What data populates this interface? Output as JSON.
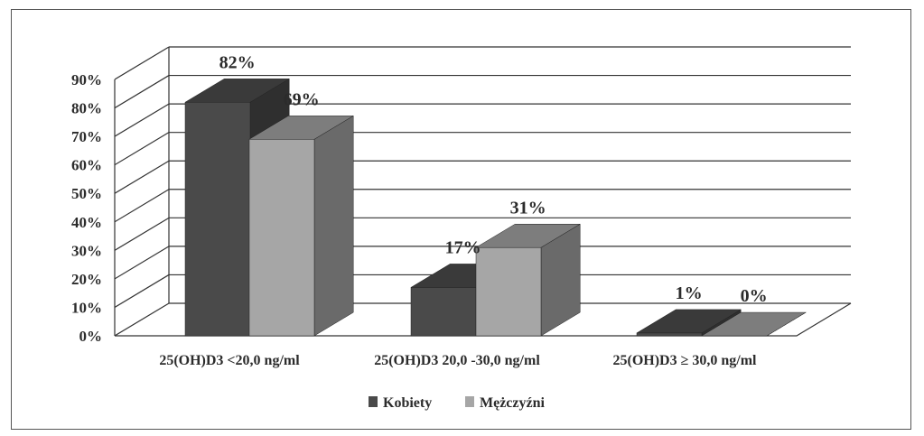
{
  "chart_data": {
    "type": "bar",
    "categories": [
      "25(OH)D3 <20,0 ng/ml",
      "25(OH)D3 20,0 -30,0 ng/ml",
      "25(OH)D3 ≥ 30,0 ng/ml"
    ],
    "series": [
      {
        "name": "Kobiety",
        "values": [
          82,
          17,
          1
        ],
        "labels": [
          "82%",
          "17%",
          "1%"
        ]
      },
      {
        "name": "Mężczyźni",
        "values": [
          69,
          31,
          0
        ],
        "labels": [
          "69%",
          "31%",
          "0%"
        ]
      }
    ],
    "ylim": [
      0,
      90
    ],
    "yticks": [
      "0%",
      "10%",
      "20%",
      "30%",
      "40%",
      "50%",
      "60%",
      "70%",
      "80%",
      "90%"
    ],
    "grid": true,
    "legend": "bottom",
    "three_d": true,
    "colors": {
      "kobiety_front": "#4a4a4a",
      "kobiety_top": "#3a3a3a",
      "kobiety_side": "#2f2f2f",
      "mezczyzni_front": "#a6a6a6",
      "mezczyzni_top": "#7d7d7d",
      "mezczyzni_side": "#6a6a6a",
      "grid": "#333333"
    }
  }
}
